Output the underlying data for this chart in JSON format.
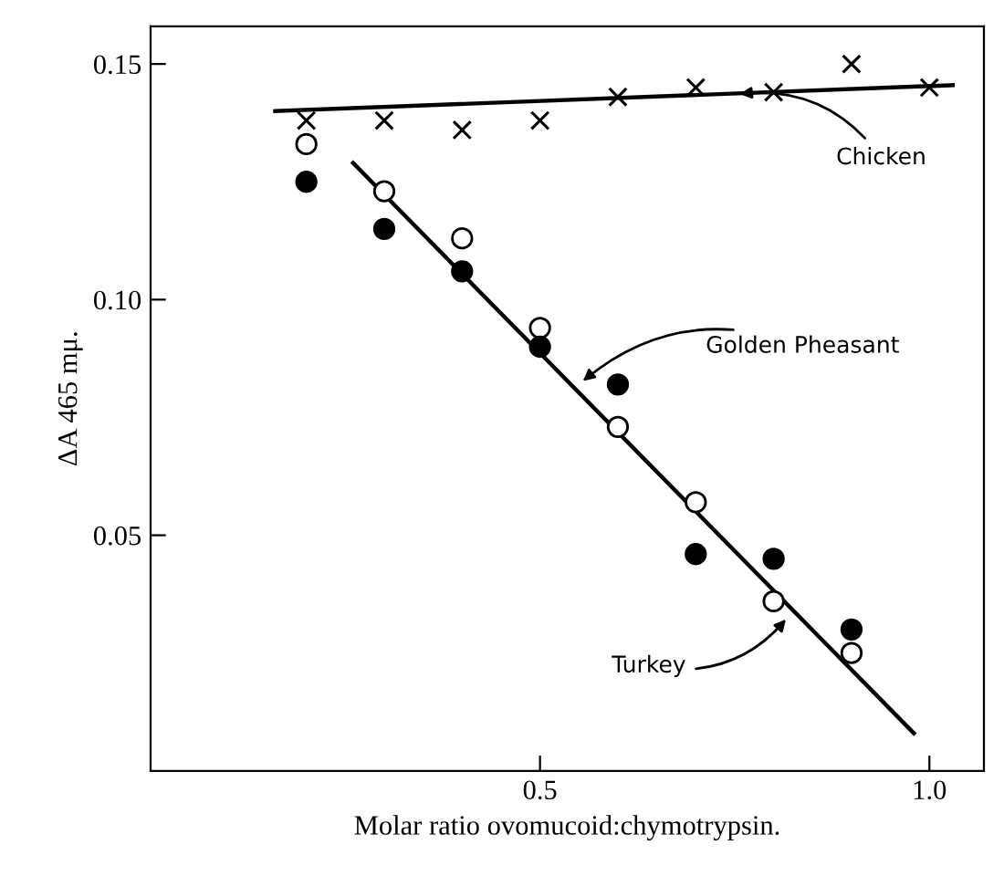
{
  "chart_data": {
    "type": "scatter",
    "xlabel": "Molar ratio ovomucoid:chymotrypsin.",
    "ylabel": "ΔA 465 mμ.",
    "xlim": [
      0,
      1.07
    ],
    "ylim": [
      0,
      0.158
    ],
    "xticks": [
      {
        "value": 0.5,
        "label": "0.5"
      },
      {
        "value": 1.0,
        "label": "1.0"
      }
    ],
    "yticks": [
      0.05,
      {
        "value": 0.1,
        "label": "0.10"
      },
      0.15
    ],
    "grid": false,
    "legend": false,
    "series": [
      {
        "marker": "cross",
        "color": "#000000",
        "x": [
          0.2,
          0.3,
          0.4,
          0.5,
          0.6,
          0.7,
          0.8,
          0.9,
          1.0
        ],
        "values": [
          0.138,
          0.138,
          0.136,
          0.138,
          0.143,
          0.145,
          0.144,
          0.15,
          0.145
        ]
      },
      {
        "type": "line",
        "marker": "none",
        "line_style": "solid",
        "color": "#000000",
        "x": [
          0.16,
          1.03
        ],
        "values": [
          0.14,
          0.1455
        ]
      },
      {
        "marker": "circle",
        "color": "#ffffff",
        "x": [
          0.2,
          0.3,
          0.4,
          0.5,
          0.6,
          0.7,
          0.8,
          0.9
        ],
        "values": [
          0.133,
          0.123,
          0.113,
          0.094,
          0.073,
          0.057,
          0.036,
          0.025
        ]
      },
      {
        "marker": "circle",
        "color": "#000000",
        "x": [
          0.2,
          0.3,
          0.4,
          0.5,
          0.6,
          0.7,
          0.8,
          0.9
        ],
        "values": [
          0.125,
          0.115,
          0.106,
          0.09,
          0.082,
          0.046,
          0.045,
          0.03
        ]
      },
      {
        "type": "line",
        "marker": "none",
        "line_style": "solid",
        "color": "#000000",
        "x": [
          0.26,
          0.98
        ],
        "values": [
          0.129,
          0.008
        ]
      }
    ],
    "annotations": [
      {
        "text": "Chicken",
        "x": 0.75,
        "y": 0.1435
      },
      {
        "text": "Golden Pheasant",
        "x": 0.55,
        "y": 0.082
      },
      {
        "text": "Turkey",
        "x": 0.82,
        "y": 0.033
      }
    ]
  }
}
